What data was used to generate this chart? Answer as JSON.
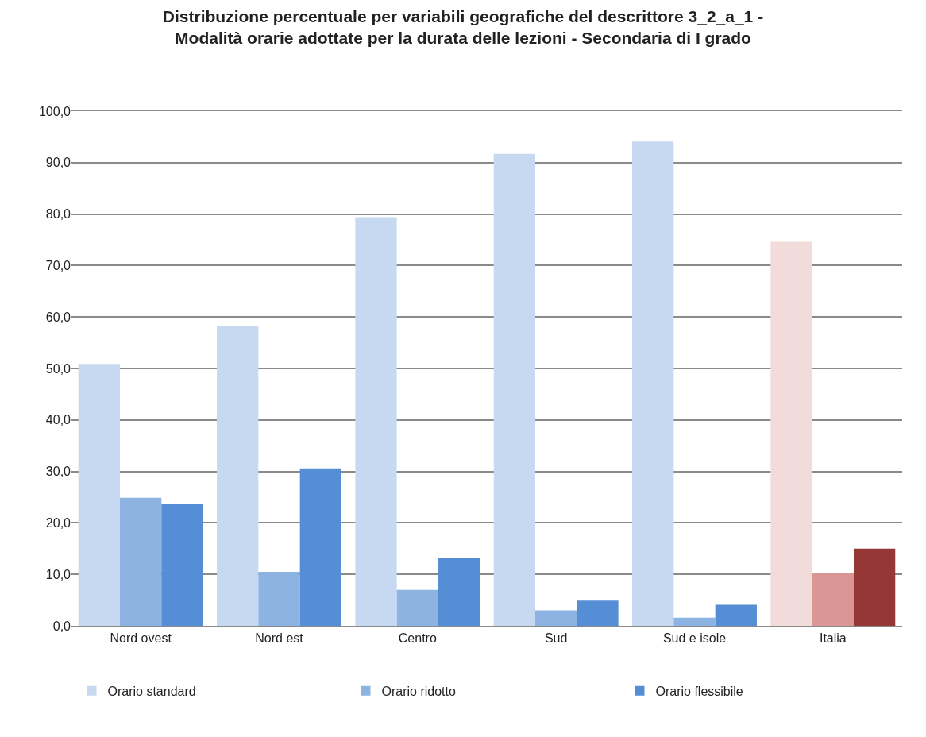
{
  "chart_data": {
    "type": "bar",
    "title": "Distribuzione percentuale per variabili geografiche del descrittore 3_2_a_1 -\nModalità orarie adottate per la durata delle lezioni - Secondaria di I grado",
    "categories": [
      "Nord ovest",
      "Nord est",
      "Centro",
      "Sud",
      "Sud e isole",
      "Italia"
    ],
    "series": [
      {
        "name": "Orario standard",
        "colors": [
          "#c6d9f1",
          "#c6d9f1",
          "#c6d9f1",
          "#c6d9f1",
          "#c6d9f1",
          "#f2dcdb"
        ],
        "values": [
          50.9,
          58.2,
          79.4,
          91.7,
          94.1,
          74.6
        ]
      },
      {
        "name": "Orario ridotto",
        "colors": [
          "#8db3e2",
          "#8db3e2",
          "#8db3e2",
          "#8db3e2",
          "#8db3e2",
          "#d99694"
        ],
        "values": [
          24.9,
          10.5,
          7.0,
          3.0,
          1.6,
          10.2
        ]
      },
      {
        "name": "Orario flessibile",
        "colors": [
          "#558ed5",
          "#558ed5",
          "#558ed5",
          "#558ed5",
          "#558ed5",
          "#953735"
        ],
        "values": [
          23.6,
          30.6,
          13.1,
          4.9,
          4.1,
          15.0
        ]
      }
    ],
    "ylim": [
      0,
      100
    ],
    "yticks": [
      {
        "value": 0,
        "label": "0,0"
      },
      {
        "value": 10,
        "label": "10,0"
      },
      {
        "value": 20,
        "label": "20,0"
      },
      {
        "value": 30,
        "label": "30,0"
      },
      {
        "value": 40,
        "label": "40,0"
      },
      {
        "value": 50,
        "label": "50,0"
      },
      {
        "value": 60,
        "label": "60,0"
      },
      {
        "value": 70,
        "label": "70,0"
      },
      {
        "value": 80,
        "label": "80,0"
      },
      {
        "value": 90,
        "label": "90,0"
      },
      {
        "value": 100,
        "label": "100,0"
      }
    ],
    "grid": "y",
    "legend": "bottom"
  }
}
